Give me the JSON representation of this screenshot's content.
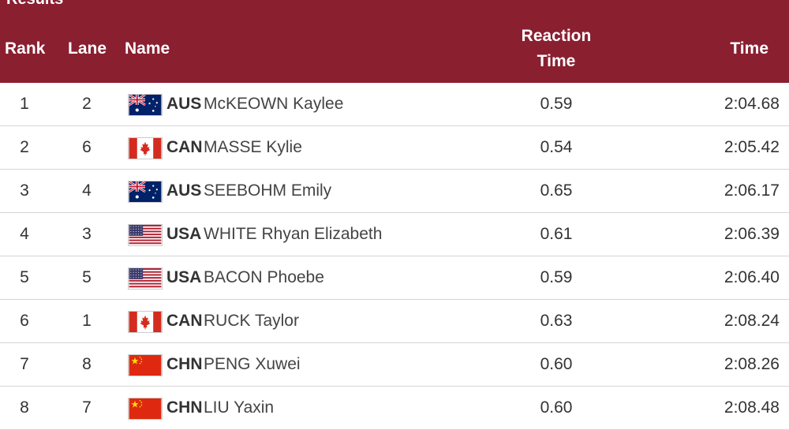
{
  "section_title": "Results",
  "columns": {
    "rank": "Rank",
    "lane": "Lane",
    "name": "Name",
    "reaction_line1": "Reaction",
    "reaction_line2": "Time",
    "time": "Time"
  },
  "colors": {
    "header_bg": "#8a1f30",
    "header_text": "#ffffff"
  },
  "rows": [
    {
      "rank": "1",
      "lane": "2",
      "flag": "australia-flag-icon",
      "noc": "AUS",
      "name": "McKEOWN Kaylee",
      "reaction": "0.59",
      "time": "2:04.68"
    },
    {
      "rank": "2",
      "lane": "6",
      "flag": "canada-flag-icon",
      "noc": "CAN",
      "name": "MASSE Kylie",
      "reaction": "0.54",
      "time": "2:05.42"
    },
    {
      "rank": "3",
      "lane": "4",
      "flag": "australia-flag-icon",
      "noc": "AUS",
      "name": "SEEBOHM Emily",
      "reaction": "0.65",
      "time": "2:06.17"
    },
    {
      "rank": "4",
      "lane": "3",
      "flag": "usa-flag-icon",
      "noc": "USA",
      "name": "WHITE Rhyan Elizabeth",
      "reaction": "0.61",
      "time": "2:06.39"
    },
    {
      "rank": "5",
      "lane": "5",
      "flag": "usa-flag-icon",
      "noc": "USA",
      "name": "BACON Phoebe",
      "reaction": "0.59",
      "time": "2:06.40"
    },
    {
      "rank": "6",
      "lane": "1",
      "flag": "canada-flag-icon",
      "noc": "CAN",
      "name": "RUCK Taylor",
      "reaction": "0.63",
      "time": "2:08.24"
    },
    {
      "rank": "7",
      "lane": "8",
      "flag": "china-flag-icon",
      "noc": "CHN",
      "name": "PENG Xuwei",
      "reaction": "0.60",
      "time": "2:08.26"
    },
    {
      "rank": "8",
      "lane": "7",
      "flag": "china-flag-icon",
      "noc": "CHN",
      "name": "LIU Yaxin",
      "reaction": "0.60",
      "time": "2:08.48"
    }
  ]
}
